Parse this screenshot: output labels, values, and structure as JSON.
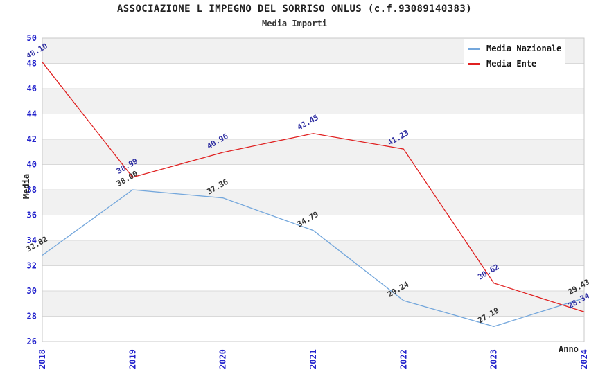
{
  "header": {
    "title": "ASSOCIAZIONE L IMPEGNO DEL SORRISO ONLUS (c.f.93089140383)",
    "subtitle": "Media Importi"
  },
  "chart_data": {
    "type": "line",
    "title": "ASSOCIAZIONE L IMPEGNO DEL SORRISO ONLUS (c.f.93089140383)",
    "subtitle": "Media Importi",
    "xlabel": "Anno",
    "ylabel": "Media",
    "x": [
      2018,
      2019,
      2020,
      2021,
      2022,
      2023,
      2024
    ],
    "series": [
      {
        "name": "Media Nazionale",
        "color": "#74a7dc",
        "label_color": "#333333",
        "values": [
          32.82,
          38.0,
          37.36,
          34.79,
          29.24,
          27.19,
          29.43
        ],
        "point_labels": [
          "32.82",
          "38.00",
          "37.36",
          "34.79",
          "29.24",
          "27.19",
          "29.43"
        ]
      },
      {
        "name": "Media Ente",
        "color": "#e02020",
        "label_color": "#2f2fa2",
        "values": [
          48.1,
          38.99,
          40.96,
          42.45,
          41.23,
          30.62,
          28.34
        ],
        "point_labels": [
          "48.10",
          "38.99",
          "40.96",
          "42.45",
          "41.23",
          "30.62",
          "28.34"
        ]
      }
    ],
    "ylim": [
      26,
      50
    ],
    "ytick_step": 2,
    "yticks": [
      26,
      28,
      30,
      32,
      34,
      36,
      38,
      40,
      42,
      44,
      46,
      48,
      50
    ],
    "grid": true,
    "legend_position": "top-right",
    "tick_color": "#2222cc",
    "band_color": "#f1f1f1",
    "grid_color": "#d9d9d9",
    "border_color": "#c9c9c9"
  }
}
